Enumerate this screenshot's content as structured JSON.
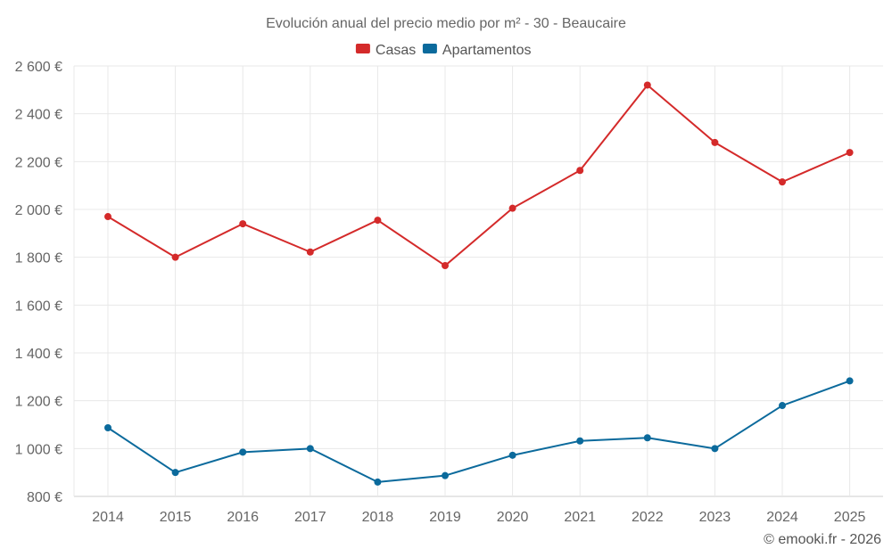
{
  "chart_data": {
    "type": "line",
    "title": "Evolución anual del precio medio por m² - 30 - Beaucaire",
    "categories": [
      "2014",
      "2015",
      "2016",
      "2017",
      "2018",
      "2019",
      "2020",
      "2021",
      "2022",
      "2023",
      "2024",
      "2025"
    ],
    "series": [
      {
        "name": "Casas",
        "color": "#d42a2a",
        "values": [
          1970,
          1800,
          1940,
          1822,
          1955,
          1765,
          2005,
          2163,
          2520,
          2280,
          2115,
          2238
        ]
      },
      {
        "name": "Apartamentos",
        "color": "#0b6a9c",
        "values": [
          1087,
          900,
          985,
          1000,
          860,
          887,
          972,
          1032,
          1045,
          1000,
          1180,
          1283
        ]
      }
    ],
    "ylim": [
      800,
      2600
    ],
    "yticks": [
      800,
      1000,
      1200,
      1400,
      1600,
      1800,
      2000,
      2200,
      2400,
      2600
    ],
    "ytick_labels": [
      "800 €",
      "1 000 €",
      "1 200 €",
      "1 400 €",
      "1 600 €",
      "1 800 €",
      "2 000 €",
      "2 200 €",
      "2 400 €",
      "2 600 €"
    ],
    "xlabel": "",
    "ylabel": "",
    "grid": true,
    "legend_position": "top-center"
  },
  "credit": "© emooki.fr - 2026"
}
